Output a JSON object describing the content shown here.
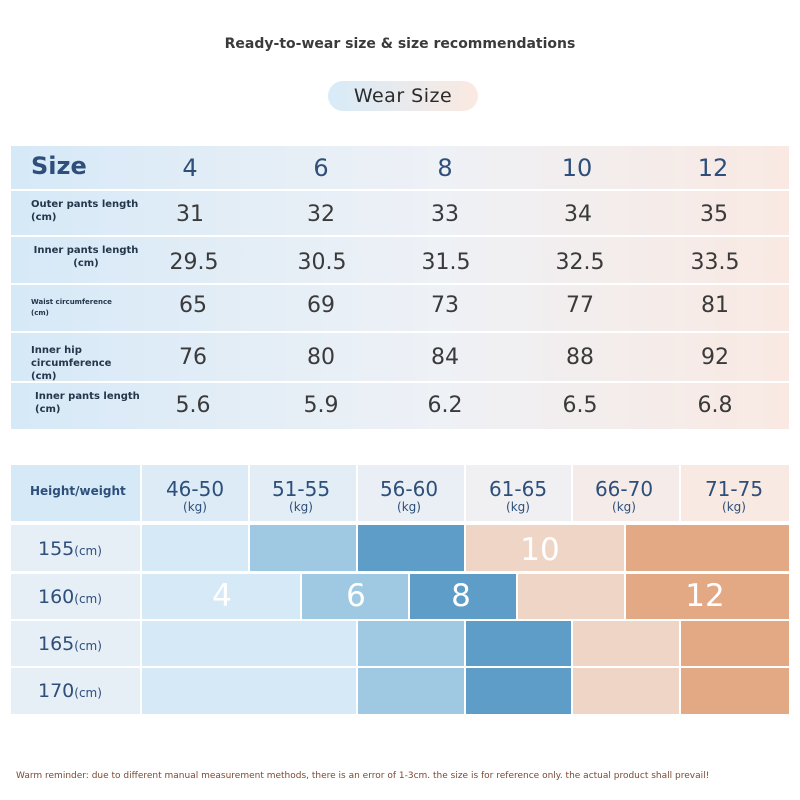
{
  "title": "Ready-to-wear size & size recommendations",
  "pill_label": "Wear  Size",
  "size_table": {
    "header_label": "Size",
    "sizes": [
      "4",
      "6",
      "8",
      "10",
      "12"
    ],
    "rows": [
      {
        "label": "Outer pants length (cm)",
        "values": [
          "31",
          "32",
          "33",
          "34",
          "35"
        ]
      },
      {
        "label": "Inner pants length (cm)",
        "values": [
          "29.5",
          "30.5",
          "31.5",
          "32.5",
          "33.5"
        ]
      },
      {
        "label": "Waist circumference (cm)",
        "values": [
          "65",
          "69",
          "73",
          "77",
          "81"
        ]
      },
      {
        "label": "Inner hip circumference (cm)",
        "values": [
          "76",
          "80",
          "84",
          "88",
          "92"
        ]
      },
      {
        "label": "Inner pants length (cm)",
        "values": [
          "5.6",
          "5.9",
          "6.2",
          "6.5",
          "6.8"
        ]
      }
    ]
  },
  "recommendation": {
    "header_label": "Height/weight",
    "weights": [
      "46-50",
      "51-55",
      "56-60",
      "61-65",
      "66-70",
      "71-75"
    ],
    "weight_unit": "(kg)",
    "heights": [
      "155",
      "160",
      "165",
      "170"
    ],
    "height_unit": "(cm)",
    "size_labels": [
      "4",
      "6",
      "8",
      "10",
      "12"
    ],
    "colors": {
      "size_4": "#d6e9f7",
      "size_6": "#9fc8e2",
      "size_8": "#5d9dc8",
      "size_10": "#efd5c6",
      "size_12": "#e3a985"
    }
  },
  "footer": "Warm reminder: due to different manual measurement methods, there is an error of 1-3cm. the size is for reference only. the actual product shall prevail!"
}
